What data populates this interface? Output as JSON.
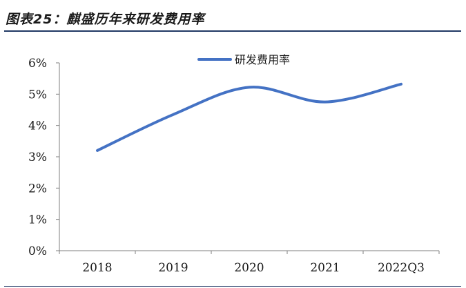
{
  "figure_title": "图表25：麒盛历年来研发费用率",
  "chart_data": {
    "type": "line",
    "categories": [
      "2018",
      "2019",
      "2020",
      "2021",
      "2022Q3"
    ],
    "series": [
      {
        "name": "研发费用率",
        "values": [
          3.2,
          4.35,
          5.22,
          4.75,
          5.32
        ]
      }
    ],
    "ylim": [
      0,
      6
    ],
    "yticks": [
      0,
      1,
      2,
      3,
      4,
      5,
      6
    ],
    "ytick_labels": [
      "0%",
      "1%",
      "2%",
      "3%",
      "4%",
      "5%",
      "6%"
    ],
    "grid": false,
    "legend_position": "top-center",
    "smooth": true,
    "line_color": "#4472c4"
  }
}
